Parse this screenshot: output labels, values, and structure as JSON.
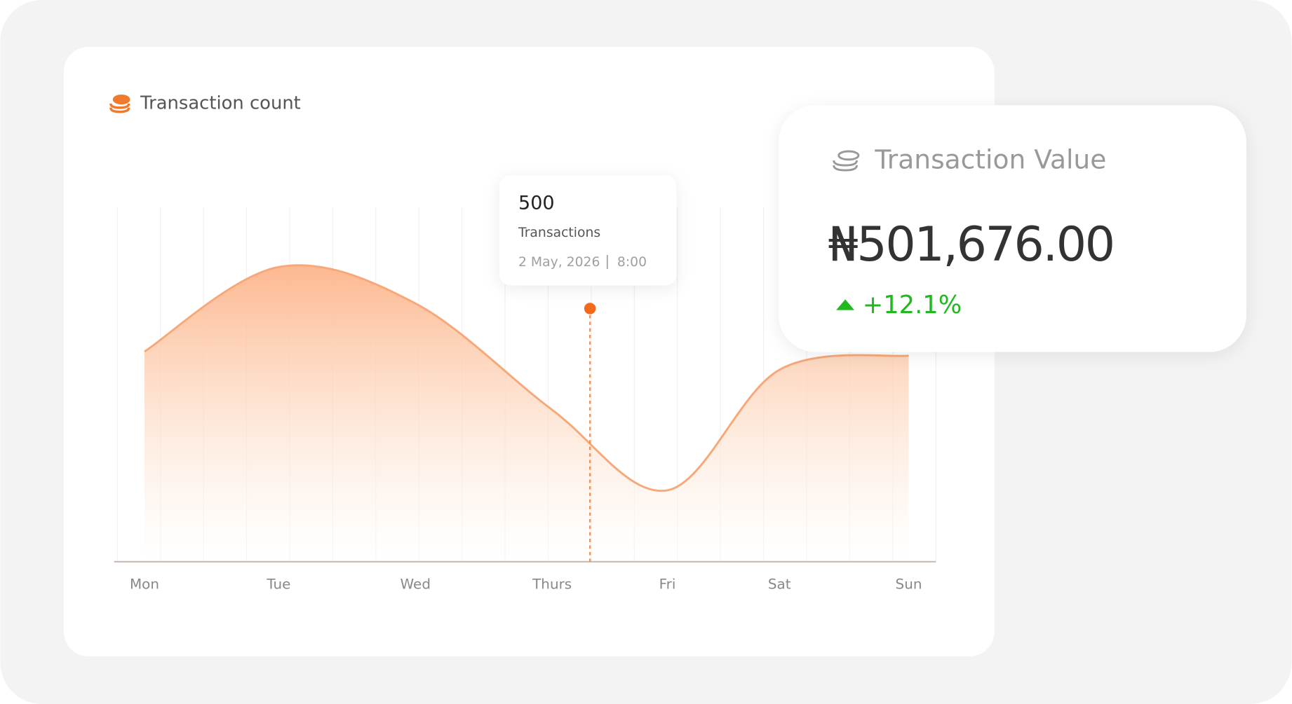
{
  "chart_data": {
    "type": "area",
    "title": "Transaction count",
    "categories": [
      "Mon",
      "Tue",
      "Wed",
      "Thurs",
      "Fri",
      "Sat",
      "Sun"
    ],
    "values": [
      415,
      582,
      510,
      300,
      141,
      379,
      407
    ],
    "color": "#f6a878",
    "ylim": [
      0,
      700
    ],
    "grid": true,
    "tooltip": {
      "value": 500,
      "label": "Transactions",
      "date": "2 May, 2026",
      "time": "8:00"
    }
  },
  "value_card": {
    "title": "Transaction Value",
    "amount": "₦501,676.00",
    "change": "+12.1%"
  }
}
